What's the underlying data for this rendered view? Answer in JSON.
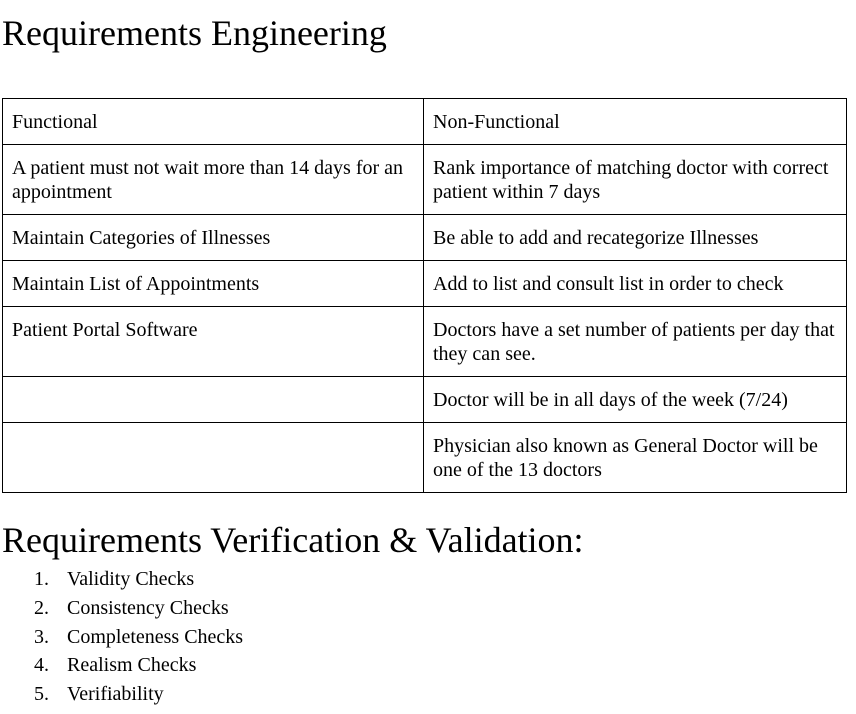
{
  "document": {
    "title": "Requirements Engineering",
    "table": {
      "headers": [
        "Functional",
        "Non-Functional"
      ],
      "rows": [
        [
          "A patient must not wait more than 14 days for an appointment",
          "Rank importance of matching doctor with correct patient within 7 days"
        ],
        [
          "Maintain Categories of Illnesses",
          "Be able to add and recategorize Illnesses"
        ],
        [
          "Maintain List of Appointments",
          "Add to list and consult list in order to check"
        ],
        [
          "Patient Portal Software",
          "Doctors have a set number of patients per day that they can see."
        ],
        [
          "",
          "Doctor will be in all days of the week (7/24)"
        ],
        [
          "",
          "Physician also known as General Doctor will be one of the 13 doctors"
        ]
      ]
    },
    "verification": {
      "title": "Requirements Verification & Validation:",
      "items": [
        {
          "number": "1.",
          "text": "Validity Checks"
        },
        {
          "number": "2.",
          "text": "Consistency Checks"
        },
        {
          "number": "3.",
          "text": "Completeness Checks"
        },
        {
          "number": "4.",
          "text": "Realism Checks"
        },
        {
          "number": "5.",
          "text": "Verifiability"
        }
      ]
    }
  }
}
